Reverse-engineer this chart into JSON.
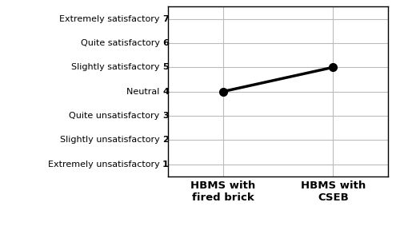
{
  "x_values": [
    0,
    1
  ],
  "y_values": [
    4,
    5
  ],
  "x_tick_labels": [
    "HBMS with\nfired brick",
    "HBMS with\nCSEB"
  ],
  "y_tick_labels": [
    "Extremely unsatisfactory",
    "Slightly unsatisfactory",
    "Quite unsatisfactory",
    "Neutral",
    "Slightly satisfactory",
    "Quite satisfactory",
    "Extremely satisfactory"
  ],
  "y_tick_values": [
    1,
    2,
    3,
    4,
    5,
    6,
    7
  ],
  "ylim": [
    0.5,
    7.5
  ],
  "xlim": [
    -0.5,
    1.5
  ],
  "line_color": "#000000",
  "line_width": 2.5,
  "marker": "o",
  "marker_size": 7,
  "marker_color": "#000000",
  "background_color": "#ffffff",
  "grid_color": "#bbbbbb",
  "border_color": "#000000",
  "label_fontsize": 8.0,
  "tick_fontsize": 9.5
}
